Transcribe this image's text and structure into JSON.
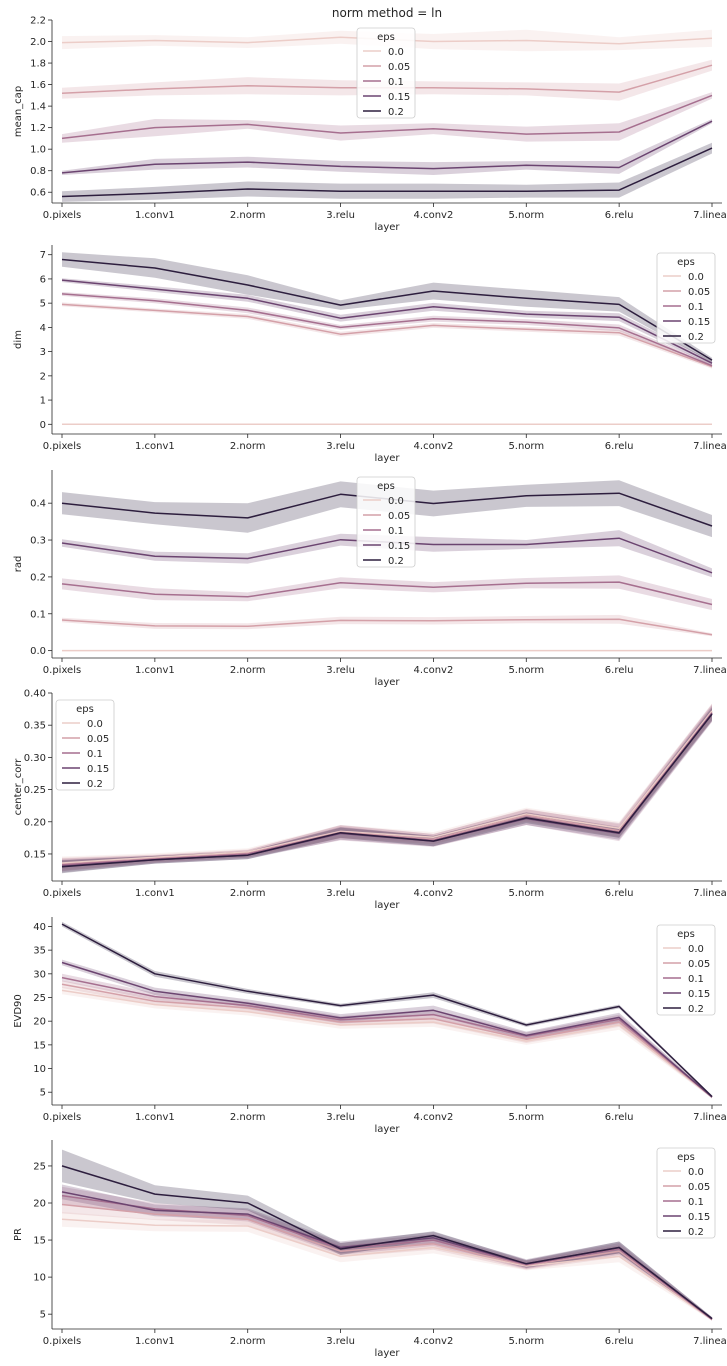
{
  "figure": {
    "title": "norm method = ln",
    "legend_title": "eps",
    "hue_values": [
      "0.0",
      "0.05",
      "0.1",
      "0.15",
      "0.2"
    ],
    "hue_colors": [
      "#eccdc8",
      "#d4a0a8",
      "#a66f8f",
      "#6b4470",
      "#2d1e3e"
    ]
  },
  "chart_data": [
    {
      "type": "line",
      "xlabel": "layer",
      "ylabel": "mean_cap",
      "categories": [
        "0.pixels",
        "1.conv1",
        "2.norm",
        "3.relu",
        "4.conv2",
        "5.norm",
        "6.relu",
        "7.linear"
      ],
      "ylim": [
        0.5,
        2.2
      ],
      "yticks": [
        0.6,
        0.8,
        1.0,
        1.2,
        1.4,
        1.6,
        1.8,
        2.0,
        2.2
      ],
      "ytick_labels": [
        "0.6",
        "0.8",
        "1.0",
        "1.2",
        "1.4",
        "1.6",
        "1.8",
        "2.0",
        "2.2"
      ],
      "legend_position": "top-center",
      "series": [
        {
          "name": "0.0",
          "values": [
            1.99,
            2.01,
            1.99,
            2.04,
            2.0,
            2.01,
            1.98,
            2.03
          ],
          "band": [
            0.06,
            0.05,
            0.05,
            0.06,
            0.07,
            0.1,
            0.06,
            0.08
          ]
        },
        {
          "name": "0.05",
          "values": [
            1.52,
            1.56,
            1.59,
            1.57,
            1.57,
            1.56,
            1.53,
            1.78
          ],
          "band": [
            0.05,
            0.06,
            0.08,
            0.07,
            0.06,
            0.06,
            0.08,
            0.05
          ]
        },
        {
          "name": "0.1",
          "values": [
            1.1,
            1.2,
            1.23,
            1.15,
            1.19,
            1.14,
            1.16,
            1.5
          ],
          "band": [
            0.04,
            0.08,
            0.04,
            0.07,
            0.05,
            0.07,
            0.08,
            0.03
          ]
        },
        {
          "name": "0.15",
          "values": [
            0.78,
            0.86,
            0.88,
            0.84,
            0.82,
            0.85,
            0.83,
            1.26
          ],
          "band": [
            0.02,
            0.05,
            0.05,
            0.05,
            0.06,
            0.04,
            0.06,
            0.02
          ]
        },
        {
          "name": "0.2",
          "values": [
            0.56,
            0.59,
            0.63,
            0.61,
            0.61,
            0.61,
            0.62,
            1.01
          ],
          "band": [
            0.05,
            0.06,
            0.07,
            0.07,
            0.07,
            0.06,
            0.07,
            0.05
          ]
        }
      ]
    },
    {
      "type": "line",
      "xlabel": "layer",
      "ylabel": "dim",
      "categories": [
        "0.pixels",
        "1.conv1",
        "2.norm",
        "3.relu",
        "4.conv2",
        "5.norm",
        "6.relu",
        "7.linear"
      ],
      "ylim": [
        -0.4,
        7.4
      ],
      "yticks": [
        0,
        1,
        2,
        3,
        4,
        5,
        6,
        7
      ],
      "ytick_labels": [
        "0",
        "1",
        "2",
        "3",
        "4",
        "5",
        "6",
        "7"
      ],
      "legend_position": "top-right",
      "series": [
        {
          "name": "0.0",
          "values": [
            0,
            0,
            0,
            0,
            0,
            0,
            0,
            0
          ],
          "band": [
            0,
            0,
            0,
            0,
            0,
            0,
            0,
            0
          ]
        },
        {
          "name": "0.05",
          "values": [
            4.95,
            4.7,
            4.45,
            3.72,
            4.08,
            3.92,
            3.78,
            2.38
          ],
          "band": [
            0.08,
            0.08,
            0.1,
            0.1,
            0.1,
            0.1,
            0.12,
            0.08
          ]
        },
        {
          "name": "0.1",
          "values": [
            5.38,
            5.1,
            4.7,
            4.0,
            4.36,
            4.22,
            3.98,
            2.42
          ],
          "band": [
            0.08,
            0.1,
            0.12,
            0.1,
            0.12,
            0.12,
            0.14,
            0.08
          ]
        },
        {
          "name": "0.15",
          "values": [
            5.95,
            5.58,
            5.2,
            4.38,
            4.85,
            4.55,
            4.42,
            2.52
          ],
          "band": [
            0.08,
            0.12,
            0.14,
            0.14,
            0.16,
            0.14,
            0.16,
            0.1
          ]
        },
        {
          "name": "0.2",
          "values": [
            6.8,
            6.45,
            5.75,
            4.92,
            5.5,
            5.2,
            4.95,
            2.65
          ],
          "band": [
            0.3,
            0.4,
            0.4,
            0.2,
            0.35,
            0.35,
            0.3,
            0.1
          ]
        }
      ]
    },
    {
      "type": "line",
      "xlabel": "layer",
      "ylabel": "rad",
      "categories": [
        "0.pixels",
        "1.conv1",
        "2.norm",
        "3.relu",
        "4.conv2",
        "5.norm",
        "6.relu",
        "7.linear"
      ],
      "ylim": [
        -0.02,
        0.49
      ],
      "yticks": [
        0.0,
        0.1,
        0.2,
        0.3,
        0.4
      ],
      "ytick_labels": [
        "0.0",
        "0.1",
        "0.2",
        "0.3",
        "0.4"
      ],
      "legend_position": "top-center",
      "series": [
        {
          "name": "0.0",
          "values": [
            0,
            0,
            0,
            0,
            0,
            0,
            0,
            0
          ],
          "band": [
            0,
            0,
            0,
            0,
            0,
            0,
            0,
            0
          ]
        },
        {
          "name": "0.05",
          "values": [
            0.083,
            0.067,
            0.066,
            0.082,
            0.081,
            0.084,
            0.085,
            0.043
          ],
          "band": [
            0.006,
            0.008,
            0.008,
            0.01,
            0.01,
            0.01,
            0.012,
            0.004
          ]
        },
        {
          "name": "0.1",
          "values": [
            0.181,
            0.153,
            0.146,
            0.184,
            0.172,
            0.183,
            0.186,
            0.125
          ],
          "band": [
            0.015,
            0.016,
            0.012,
            0.015,
            0.014,
            0.014,
            0.018,
            0.015
          ]
        },
        {
          "name": "0.15",
          "values": [
            0.292,
            0.256,
            0.25,
            0.301,
            0.288,
            0.288,
            0.305,
            0.211
          ],
          "band": [
            0.01,
            0.012,
            0.014,
            0.016,
            0.02,
            0.012,
            0.022,
            0.012
          ]
        },
        {
          "name": "0.2",
          "values": [
            0.4,
            0.373,
            0.36,
            0.424,
            0.399,
            0.42,
            0.427,
            0.338
          ],
          "band": [
            0.03,
            0.03,
            0.04,
            0.035,
            0.035,
            0.03,
            0.035,
            0.03
          ]
        }
      ]
    },
    {
      "type": "line",
      "xlabel": "layer",
      "ylabel": "center_corr",
      "categories": [
        "0.pixels",
        "1.conv1",
        "2.norm",
        "3.relu",
        "4.conv2",
        "5.norm",
        "6.relu",
        "7.linear"
      ],
      "ylim": [
        0.108,
        0.4
      ],
      "yticks": [
        0.15,
        0.2,
        0.25,
        0.3,
        0.35,
        0.4
      ],
      "ytick_labels": [
        "0.15",
        "0.20",
        "0.25",
        "0.30",
        "0.35",
        "0.40"
      ],
      "legend_position": "top-left",
      "series": [
        {
          "name": "0.0",
          "values": [
            0.136,
            0.145,
            0.153,
            0.185,
            0.176,
            0.212,
            0.19,
            0.372
          ],
          "band": [
            0.01,
            0.006,
            0.006,
            0.01,
            0.008,
            0.01,
            0.01,
            0.012
          ]
        },
        {
          "name": "0.05",
          "values": [
            0.134,
            0.143,
            0.151,
            0.184,
            0.173,
            0.21,
            0.186,
            0.37
          ],
          "band": [
            0.01,
            0.006,
            0.006,
            0.01,
            0.008,
            0.01,
            0.01,
            0.012
          ]
        },
        {
          "name": "0.1",
          "values": [
            0.133,
            0.142,
            0.15,
            0.183,
            0.171,
            0.207,
            0.184,
            0.369
          ],
          "band": [
            0.01,
            0.006,
            0.006,
            0.012,
            0.01,
            0.012,
            0.014,
            0.014
          ]
        },
        {
          "name": "0.15",
          "values": [
            0.131,
            0.141,
            0.148,
            0.182,
            0.17,
            0.205,
            0.182,
            0.368
          ],
          "band": [
            0.01,
            0.006,
            0.006,
            0.01,
            0.008,
            0.01,
            0.01,
            0.012
          ]
        },
        {
          "name": "0.2",
          "values": [
            0.13,
            0.141,
            0.148,
            0.183,
            0.17,
            0.206,
            0.183,
            0.367
          ],
          "band": [
            0.01,
            0.006,
            0.006,
            0.008,
            0.008,
            0.008,
            0.008,
            0.01
          ]
        }
      ]
    },
    {
      "type": "line",
      "xlabel": "layer",
      "ylabel": "EVD90",
      "categories": [
        "0.pixels",
        "1.conv1",
        "2.norm",
        "3.relu",
        "4.conv2",
        "5.norm",
        "6.relu",
        "7.linear"
      ],
      "ylim": [
        2.3,
        42.0
      ],
      "yticks": [
        5,
        10,
        15,
        20,
        25,
        30,
        35,
        40
      ],
      "ytick_labels": [
        "5",
        "10",
        "15",
        "20",
        "25",
        "30",
        "35",
        "40"
      ],
      "legend_position": "top-right",
      "series": [
        {
          "name": "0.0",
          "values": [
            26.5,
            23.5,
            22.0,
            19.2,
            19.8,
            15.8,
            19.2,
            4.0
          ],
          "band": [
            0.8,
            0.8,
            0.8,
            0.8,
            1.0,
            0.8,
            1.0,
            0.3
          ]
        },
        {
          "name": "0.05",
          "values": [
            27.8,
            24.2,
            22.8,
            19.8,
            20.5,
            16.2,
            19.8,
            4.0
          ],
          "band": [
            0.8,
            0.8,
            0.8,
            0.8,
            1.0,
            0.8,
            1.0,
            0.3
          ]
        },
        {
          "name": "0.1",
          "values": [
            29.2,
            25.2,
            23.3,
            20.3,
            21.4,
            16.8,
            20.4,
            4.0
          ],
          "band": [
            0.8,
            0.8,
            0.8,
            0.8,
            1.0,
            0.8,
            1.0,
            0.3
          ]
        },
        {
          "name": "0.15",
          "values": [
            32.4,
            26.3,
            23.8,
            20.7,
            22.3,
            17.0,
            20.8,
            4.0
          ],
          "band": [
            0.6,
            0.8,
            0.8,
            0.8,
            1.0,
            0.8,
            1.0,
            0.3
          ]
        },
        {
          "name": "0.2",
          "values": [
            40.5,
            30.0,
            26.3,
            23.3,
            25.5,
            19.2,
            23.1,
            4.1
          ],
          "band": [
            0.5,
            0.6,
            0.5,
            0.4,
            0.6,
            0.4,
            0.4,
            0.2
          ]
        }
      ]
    },
    {
      "type": "line",
      "xlabel": "layer",
      "ylabel": "PR",
      "categories": [
        "0.pixels",
        "1.conv1",
        "2.norm",
        "3.relu",
        "4.conv2",
        "5.norm",
        "6.relu",
        "7.linear"
      ],
      "ylim": [
        3.0,
        28.5
      ],
      "yticks": [
        5,
        10,
        15,
        20,
        25
      ],
      "ytick_labels": [
        "5",
        "10",
        "15",
        "20",
        "25"
      ],
      "legend_position": "top-right",
      "series": [
        {
          "name": "0.0",
          "values": [
            17.8,
            17.0,
            16.9,
            12.8,
            14.0,
            11.5,
            12.8,
            4.3
          ],
          "band": [
            1.0,
            0.8,
            0.8,
            0.8,
            0.8,
            0.6,
            0.8,
            0.2
          ]
        },
        {
          "name": "0.05",
          "values": [
            19.8,
            18.5,
            17.8,
            13.5,
            14.5,
            11.6,
            13.5,
            4.3
          ],
          "band": [
            1.2,
            0.8,
            0.8,
            0.8,
            0.8,
            0.6,
            0.8,
            0.2
          ]
        },
        {
          "name": "0.1",
          "values": [
            21.0,
            19.2,
            18.3,
            13.8,
            15.0,
            11.7,
            13.8,
            4.3
          ],
          "band": [
            1.2,
            0.8,
            0.8,
            0.8,
            0.8,
            0.6,
            0.8,
            0.2
          ]
        },
        {
          "name": "0.15",
          "values": [
            21.5,
            19.0,
            18.5,
            14.0,
            15.3,
            11.8,
            14.0,
            4.4
          ],
          "band": [
            1.0,
            0.8,
            0.8,
            0.8,
            0.8,
            0.6,
            0.8,
            0.2
          ]
        },
        {
          "name": "0.2",
          "values": [
            25.0,
            21.2,
            20.0,
            13.8,
            15.6,
            11.8,
            14.0,
            4.4
          ],
          "band": [
            2.2,
            1.2,
            1.0,
            0.8,
            0.6,
            0.5,
            0.8,
            0.2
          ]
        }
      ]
    }
  ]
}
